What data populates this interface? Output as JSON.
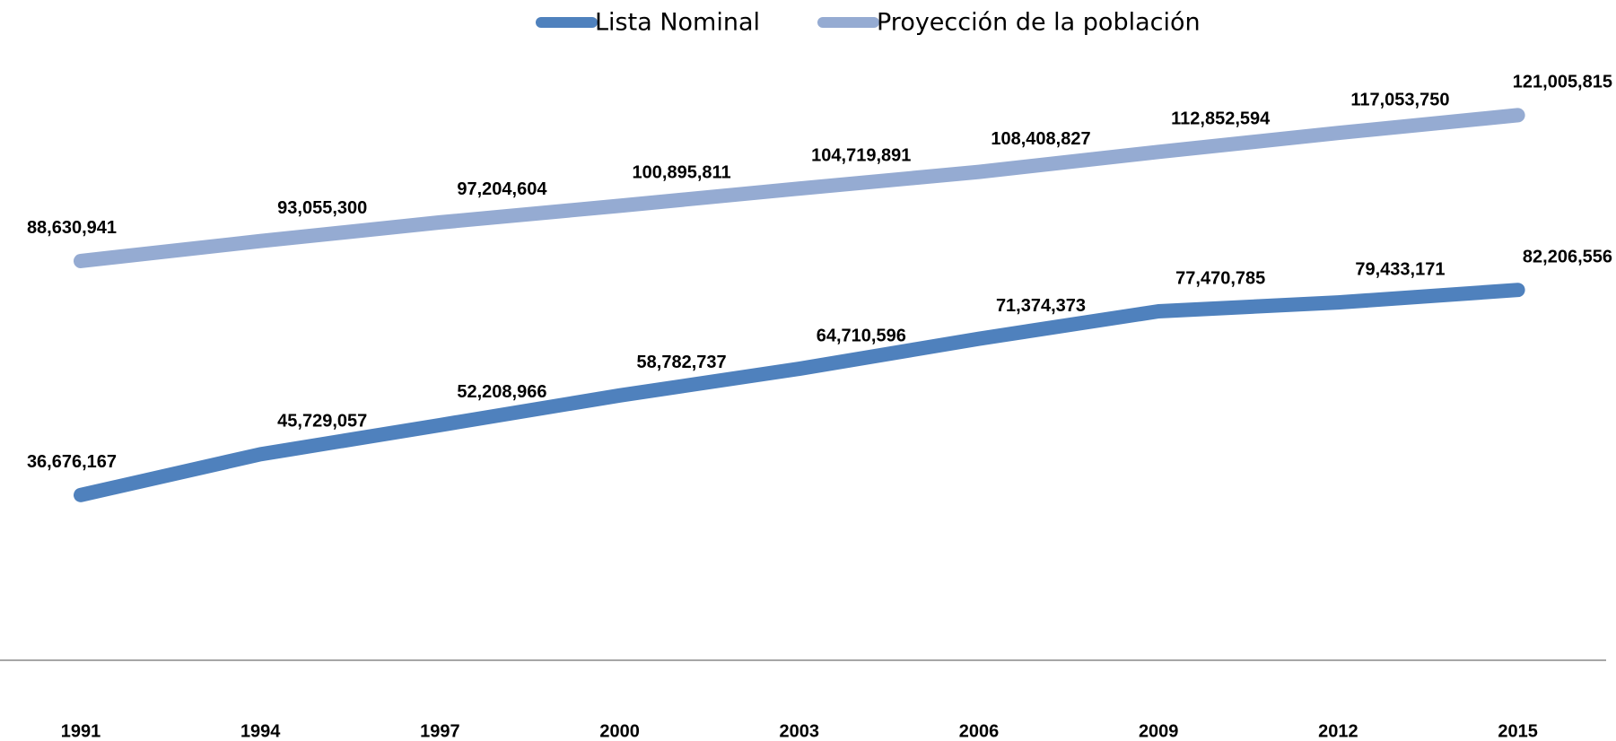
{
  "chart_data": {
    "type": "line",
    "categories": [
      "1991",
      "1994",
      "1997",
      "2000",
      "2003",
      "2006",
      "2009",
      "2012",
      "2015"
    ],
    "series": [
      {
        "name": "Lista Nominal",
        "color": "#4f81bd",
        "values": [
          36676167,
          45729057,
          52208966,
          58782737,
          64710596,
          71374373,
          77470785,
          79433171,
          82206556
        ],
        "value_labels": [
          "36,676,167",
          "45,729,057",
          "52,208,966",
          "58,782,737",
          "64,710,596",
          "71,374,373",
          "77,470,785",
          "79,433,171",
          "82,206,556"
        ]
      },
      {
        "name": "Proyección de la población",
        "color": "#95abd2",
        "values": [
          88630941,
          93055300,
          97204604,
          100895811,
          104719891,
          108408827,
          112852594,
          117053750,
          121005815
        ],
        "value_labels": [
          "88,630,941",
          "93,055,300",
          "97,204,604",
          "100,895,811",
          "104,719,891",
          "108,408,827",
          "112,852,594",
          "117,053,750",
          "121,005,815"
        ]
      }
    ],
    "ylim": [
      0,
      140000000
    ],
    "legend": "top"
  }
}
